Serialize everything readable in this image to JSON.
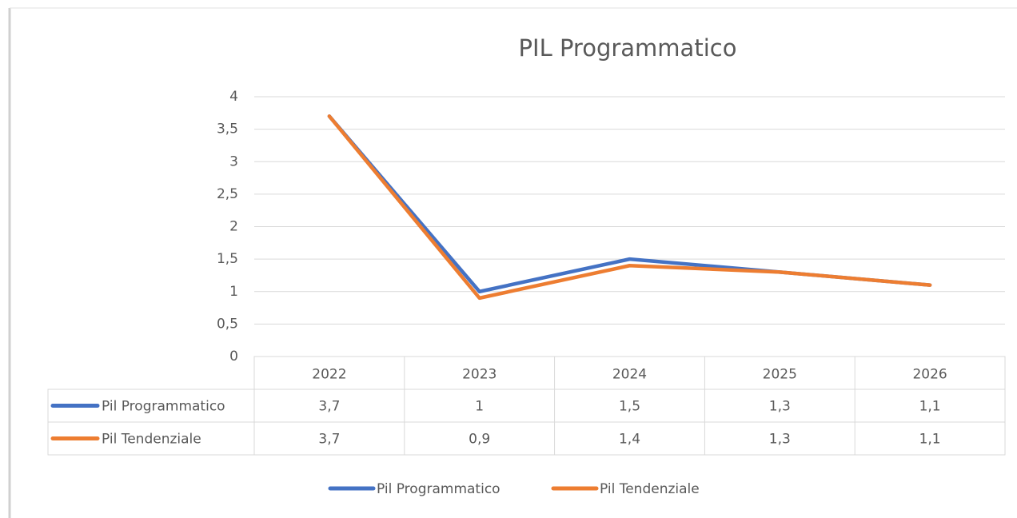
{
  "chart_data": {
    "type": "line",
    "title": "PIL Programmatico",
    "categories": [
      "2022",
      "2023",
      "2024",
      "2025",
      "2026"
    ],
    "series": [
      {
        "name": "Pil Programmatico",
        "color": "#4472c4",
        "values": [
          3.7,
          1,
          1.5,
          1.3,
          1.1
        ],
        "value_labels": [
          "3,7",
          "1",
          "1,5",
          "1,3",
          "1,1"
        ]
      },
      {
        "name": "Pil Tendenziale",
        "color": "#ed7d31",
        "values": [
          3.7,
          0.9,
          1.4,
          1.3,
          1.1
        ],
        "value_labels": [
          "3,7",
          "0,9",
          "1,4",
          "1,3",
          "1,1"
        ]
      }
    ],
    "ylim": [
      0,
      4
    ],
    "yticks": [
      0,
      {
        "value": 0.5,
        "label": "0,5"
      },
      1,
      {
        "value": 1.5,
        "label": "1,5"
      },
      2,
      {
        "value": 2.5,
        "label": "2,5"
      },
      3,
      {
        "value": 3.5,
        "label": "3,5"
      },
      4
    ],
    "grid": true
  }
}
